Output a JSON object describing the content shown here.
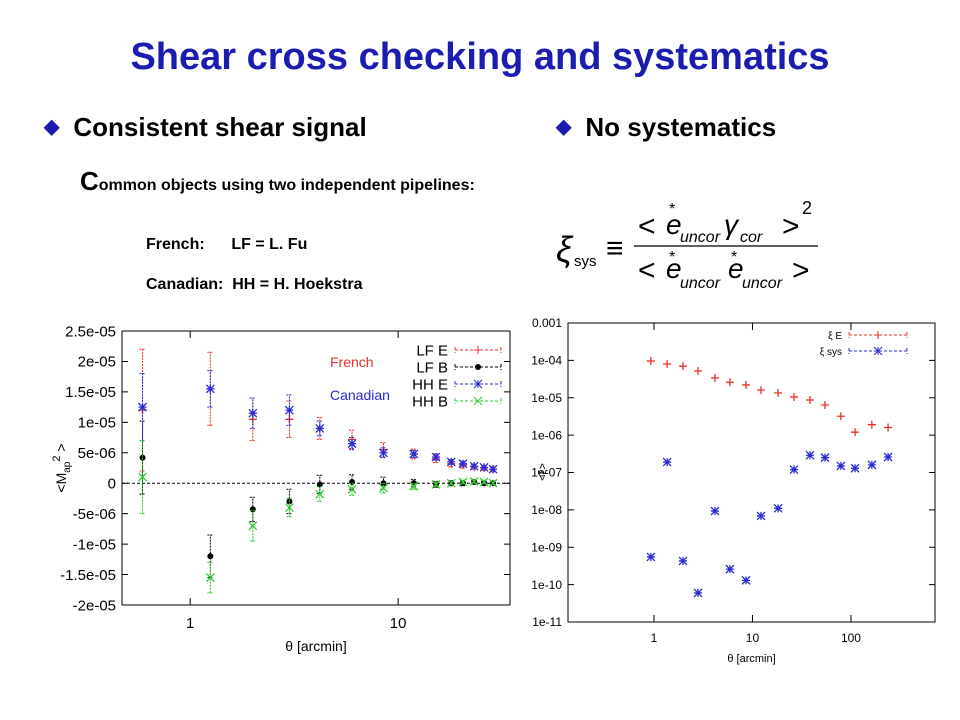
{
  "header": {
    "title": "Shear cross checking and systematics"
  },
  "left": {
    "bullet": "Consistent shear signal",
    "paragraph": "Common objects using two independent pipelines:",
    "lines": [
      "French:      LF = L. Fu",
      "Canadian:  HH = H. Hoekstra"
    ]
  },
  "right": {
    "bullet": "No systematics",
    "formula": {
      "xi": "ξ",
      "sys": "sys",
      "equiv": "≡",
      "lt": "<",
      "gt": ">",
      "e": "e",
      "star": "*",
      "uncor": "uncor",
      "gamma": "γ",
      "cor": "cor",
      "sq": "2"
    }
  },
  "chart_data": [
    {
      "type": "scatter",
      "xlog": true,
      "ylog": false,
      "zero_line": true,
      "xlabel": "θ [arcmin]",
      "ylabel_parts": [
        "<M",
        "ap",
        "2",
        " >"
      ],
      "xlim": [
        0.47,
        34.5
      ],
      "xticks": [
        1,
        10
      ],
      "ylim": [
        -2e-05,
        2.5e-05
      ],
      "yticks": [
        {
          "value": 2.5e-05,
          "label": "2.5e-05"
        },
        {
          "value": 2e-05,
          "label": "2e-05"
        },
        {
          "value": 1.5e-05,
          "label": "1.5e-05"
        },
        {
          "value": 1e-05,
          "label": "1e-05"
        },
        {
          "value": 5e-06,
          "label": "5e-06"
        },
        0,
        {
          "value": -5e-06,
          "label": "-5e-06"
        },
        {
          "value": -1e-05,
          "label": "-1e-05"
        },
        {
          "value": -1.5e-05,
          "label": "-1.5e-05"
        },
        {
          "value": -2e-05,
          "label": "-2e-05"
        }
      ],
      "x": [
        0.59,
        1.25,
        2.0,
        3.0,
        4.2,
        6.0,
        8.5,
        11.9,
        15.2,
        18.0,
        20.5,
        23.2,
        25.9,
        28.6
      ],
      "annotations": [
        {
          "text": "French",
          "color": "#e8312a"
        },
        {
          "text": "Canadian",
          "color": "#2a2ad0"
        }
      ],
      "series": [
        {
          "name": "LF E",
          "color": "#e8312a",
          "marker": "plus",
          "values": [
            1.2e-05,
            1.55e-05,
            1.05e-05,
            1.05e-05,
            9e-06,
            7.2e-06,
            5.5e-06,
            4.8e-06,
            4e-06,
            3.2e-06,
            3e-06,
            2.7e-06,
            2.5e-06,
            2.3e-06
          ],
          "errors": [
            1e-05,
            6e-06,
            3.5e-06,
            3e-06,
            1.8e-06,
            1.5e-06,
            1.2e-06,
            8e-07,
            6e-07,
            5e-07,
            5e-07,
            4e-07,
            4e-07,
            4e-07
          ]
        },
        {
          "name": "LF B",
          "color": "#000000",
          "marker": "circle",
          "values": [
            4.2e-06,
            -1.2e-05,
            -4.3e-06,
            -3e-06,
            -2e-07,
            2e-07,
            0,
            0,
            -2e-07,
            0,
            0,
            2e-07,
            0,
            0
          ],
          "errors": [
            6e-06,
            3.5e-06,
            2e-06,
            2e-06,
            1.5e-06,
            1.2e-06,
            1e-06,
            6e-07,
            5e-07,
            4e-07,
            4e-07,
            3e-07,
            3e-07,
            3e-07
          ]
        },
        {
          "name": "HH E",
          "color": "#2a2ad0",
          "marker": "star",
          "values": [
            1.25e-05,
            1.55e-05,
            1.15e-05,
            1.2e-05,
            9e-06,
            6.5e-06,
            5e-06,
            4.8e-06,
            4.3e-06,
            3.5e-06,
            3.2e-06,
            2.8e-06,
            2.6e-06,
            2.3e-06
          ],
          "errors": [
            5.5e-06,
            3e-06,
            2.5e-06,
            2.5e-06,
            1.2e-06,
            1e-06,
            8e-07,
            6e-07,
            5e-07,
            4e-07,
            4e-07,
            3e-07,
            3e-07,
            3e-07
          ]
        },
        {
          "name": "HH B",
          "color": "#33cc33",
          "marker": "cross",
          "values": [
            1e-06,
            -1.55e-05,
            -7e-06,
            -4e-06,
            -1.8e-06,
            -1e-06,
            -8e-07,
            -5e-07,
            -2e-07,
            0,
            2e-07,
            3e-07,
            2e-07,
            0
          ],
          "errors": [
            6e-06,
            2.5e-06,
            2.5e-06,
            1.5e-06,
            1.2e-06,
            1e-06,
            8e-07,
            5e-07,
            4e-07,
            3e-07,
            3e-07,
            3e-07,
            3e-07,
            3e-07
          ]
        }
      ]
    },
    {
      "type": "scatter",
      "xlog": true,
      "ylog": true,
      "xlabel": "θ [arcmin]",
      "ylabel_parts": [
        "<ξ>"
      ],
      "xlim": [
        0.134,
        713
      ],
      "xticks": [
        1,
        10,
        100
      ],
      "ylim": [
        1e-11,
        0.001
      ],
      "yticks": [
        0.001,
        {
          "value": 0.0001,
          "label": "1e-04"
        },
        {
          "value": 1e-05,
          "label": "1e-05"
        },
        {
          "value": 1e-06,
          "label": "1e-06"
        },
        {
          "value": 1e-07,
          "label": "1e-07"
        },
        {
          "value": 1e-08,
          "label": "1e-08"
        },
        {
          "value": 1e-09,
          "label": "1e-09"
        },
        {
          "value": 1e-10,
          "label": "1e-10"
        },
        {
          "value": 1e-11,
          "label": "1e-11"
        }
      ],
      "x": [
        0.93,
        1.36,
        1.97,
        2.8,
        4.16,
        5.9,
        8.6,
        12.2,
        18.2,
        26.4,
        38.4,
        54.5,
        79,
        110,
        163,
        238
      ],
      "series": [
        {
          "name": "ξ E",
          "color": "#e8312a",
          "marker": "plus",
          "values": [
            9.6e-05,
            8e-05,
            7e-05,
            5.2e-05,
            3.4e-05,
            2.6e-05,
            2.2e-05,
            1.6e-05,
            1.35e-05,
            1.05e-05,
            8.7e-06,
            6.4e-06,
            3.2e-06,
            1.2e-06,
            1.9e-06,
            1.6e-06
          ]
        },
        {
          "name": "ξ sys",
          "color": "#2a2ad0",
          "marker": "star",
          "values": [
            5.5e-10,
            1.9e-07,
            4.3e-10,
            6e-11,
            9.3e-09,
            2.6e-10,
            1.3e-10,
            6.9e-09,
            1.1e-08,
            1.2e-07,
            2.9e-07,
            2.5e-07,
            1.5e-07,
            1.3e-07,
            1.6e-07,
            2.6e-07
          ]
        }
      ]
    }
  ]
}
